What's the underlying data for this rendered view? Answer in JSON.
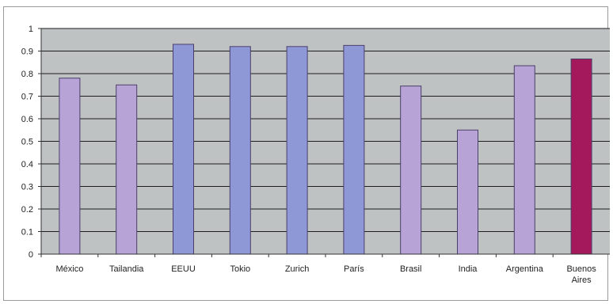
{
  "chart_data": {
    "type": "bar",
    "categories": [
      "México",
      "Tailandia",
      "EEUU",
      "Tokio",
      "Zurich",
      "París",
      "Brasil",
      "India",
      "Argentina",
      "Buenos Aires"
    ],
    "values": [
      0.78,
      0.75,
      0.93,
      0.92,
      0.92,
      0.925,
      0.745,
      0.55,
      0.835,
      0.865
    ],
    "bar_colors": [
      "#b7a3d6",
      "#b7a3d6",
      "#8f98d6",
      "#8f98d6",
      "#8f98d6",
      "#8f98d6",
      "#b7a3d6",
      "#b7a3d6",
      "#b7a3d6",
      "#a3195b"
    ],
    "ylim": [
      0,
      1
    ],
    "yticks": [
      "0",
      "0.1",
      "0.2",
      "0.3",
      "0.4",
      "0.5",
      "0.6",
      "0.7",
      "0.8",
      "0.9",
      "1"
    ],
    "plot_background": "#bfc2c3",
    "gridlines": true,
    "legend": false,
    "title": "",
    "xlabel": "",
    "ylabel": ""
  }
}
